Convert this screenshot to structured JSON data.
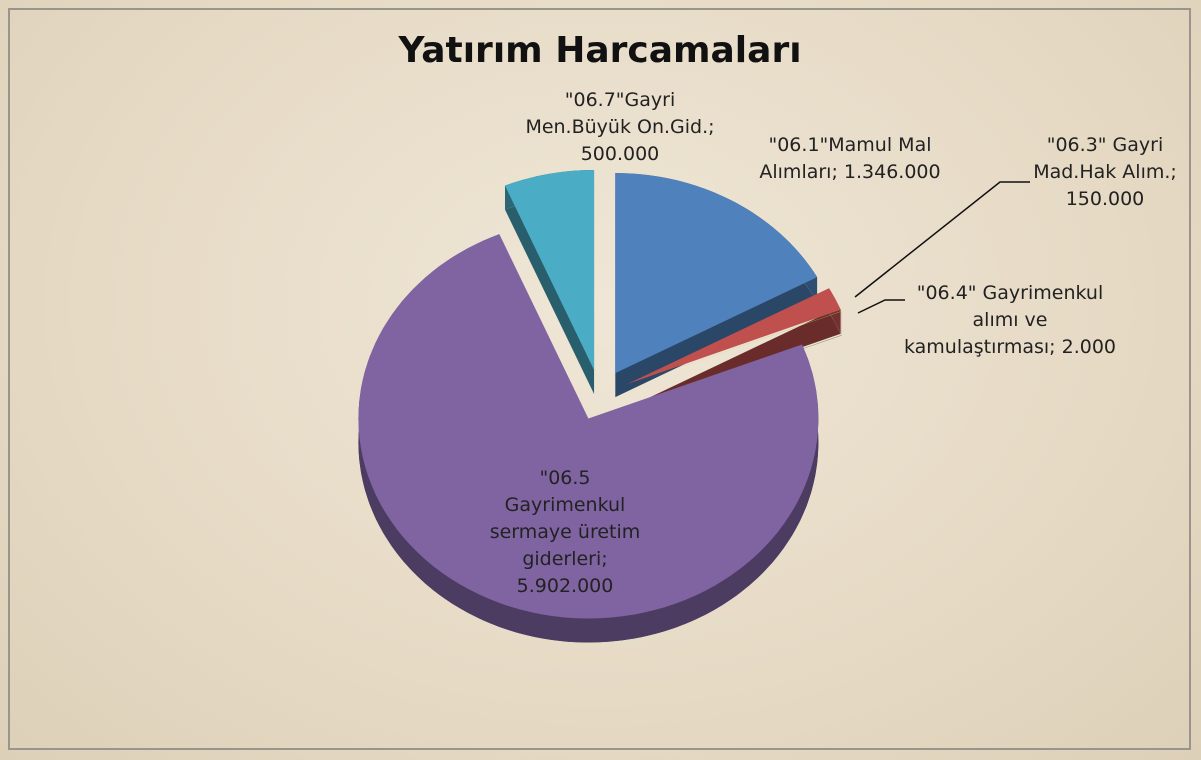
{
  "chart_data": {
    "type": "pie",
    "title": "Yatırım Harcamaları",
    "categories": [
      "\"06.1\"Mamul Mal Alımları",
      "\"06.3\" Gayri Mad.Hak Alım.",
      "\"06.4\" Gayrimenkul alımı ve kamulaştırması",
      "\"06.5 Gayrimenkul sermaye üretim giderleri",
      "\"06.7\"Gayri Men.Büyük On.Gid."
    ],
    "values": [
      1346000,
      150000,
      2000,
      5902000,
      500000
    ],
    "value_labels": [
      "1.346.000",
      "150.000",
      "2.000",
      "5.902.000",
      "500.000"
    ],
    "label_separator": ";",
    "colors": [
      "#4f81bd",
      "#c0504d",
      "#9bbb59",
      "#8064a2",
      "#4bacc6"
    ]
  }
}
